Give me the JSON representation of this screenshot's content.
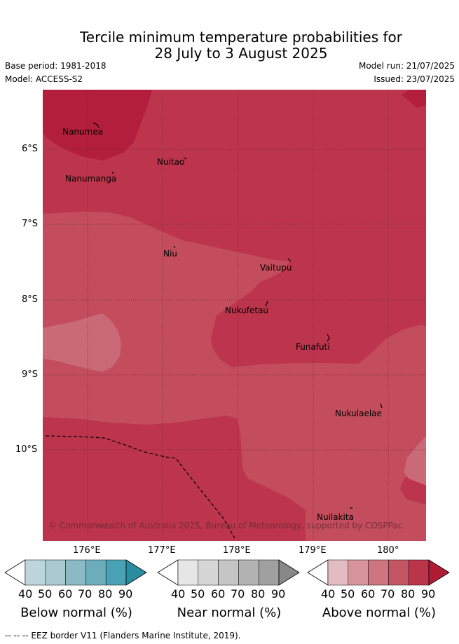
{
  "title_line1": "Tercile minimum temperature probabilities for",
  "title_line2": "28 July to 3 August 2025",
  "base_period": "Base period: 1981-2018",
  "model": "Model: ACCESS-S2",
  "model_run": "Model run: 21/07/2025",
  "issued": "Issued: 23/07/2025",
  "lat_labels": [
    "6°S",
    "7°S",
    "8°S",
    "9°S",
    "10°S"
  ],
  "lon_labels": [
    "176°E",
    "177°E",
    "178°E",
    "179°E",
    "180°"
  ],
  "places": [
    {
      "name": "Nanumea"
    },
    {
      "name": "Nuitao"
    },
    {
      "name": "Nanumanga"
    },
    {
      "name": "Niu"
    },
    {
      "name": "Vaitupu"
    },
    {
      "name": "Nukufetau"
    },
    {
      "name": "Funafuti"
    },
    {
      "name": "Nukulaelae"
    },
    {
      "name": "Nuilakita"
    }
  ],
  "copyright": "© Commonwealth of Australia 2025, Bureau of Meteorology, supported by COSPPac",
  "colorbars": [
    {
      "title": "Below normal (%)",
      "ticks": [
        "40",
        "50",
        "60",
        "70",
        "80",
        "90"
      ],
      "colors": [
        "#ffffff",
        "#bdd6dd",
        "#a7c9cf",
        "#8bbac5",
        "#6cadbc",
        "#48a2b3",
        "#2a8c9f"
      ]
    },
    {
      "title": "Near normal (%)",
      "ticks": [
        "40",
        "50",
        "60",
        "70",
        "80",
        "90"
      ],
      "colors": [
        "#ffffff",
        "#e6e6e6",
        "#d6d6d6",
        "#c5c5c5",
        "#b2b2b2",
        "#a0a0a0",
        "#888888"
      ]
    },
    {
      "title": "Above normal (%)",
      "ticks": [
        "40",
        "50",
        "60",
        "70",
        "80",
        "90"
      ],
      "colors": [
        "#ffffff",
        "#e3bcc1",
        "#d8949d",
        "#cf7580",
        "#c45564",
        "#ba344a",
        "#b01c36"
      ]
    }
  ],
  "eez_legend": "--  --  -- EEZ border V11 (Flanders Marine Institute, 2019)."
}
